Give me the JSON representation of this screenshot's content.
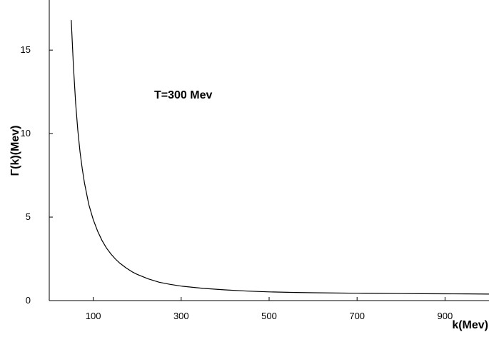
{
  "chart_data": {
    "type": "line",
    "title": "",
    "xlabel": "k(Mev)",
    "ylabel": "Γ(k)(Mev)",
    "annotation": "T=300 Mev",
    "xlim": [
      0,
      1000
    ],
    "ylim": [
      0,
      18
    ],
    "x_ticks": [
      100,
      300,
      500,
      700,
      900
    ],
    "y_ticks": [
      0,
      5,
      10,
      15
    ],
    "grid": false,
    "legend": "none",
    "colors": {
      "line": "#000000",
      "axis": "#000000"
    },
    "series": [
      {
        "x": [
          50,
          55,
          60,
          65,
          70,
          75,
          80,
          90,
          100,
          110,
          120,
          130,
          140,
          150,
          160,
          175,
          190,
          200,
          225,
          250,
          275,
          300,
          350,
          400,
          450,
          500,
          550,
          600,
          650,
          700,
          750,
          800,
          850,
          900,
          950,
          1000
        ],
        "values": [
          16.8,
          14.0,
          11.8,
          10.2,
          8.9,
          7.9,
          7.05,
          5.75,
          4.85,
          4.15,
          3.6,
          3.15,
          2.8,
          2.5,
          2.25,
          1.95,
          1.7,
          1.57,
          1.3,
          1.1,
          0.97,
          0.87,
          0.73,
          0.64,
          0.57,
          0.52,
          0.49,
          0.47,
          0.455,
          0.44,
          0.43,
          0.42,
          0.41,
          0.405,
          0.4,
          0.39
        ]
      }
    ]
  }
}
